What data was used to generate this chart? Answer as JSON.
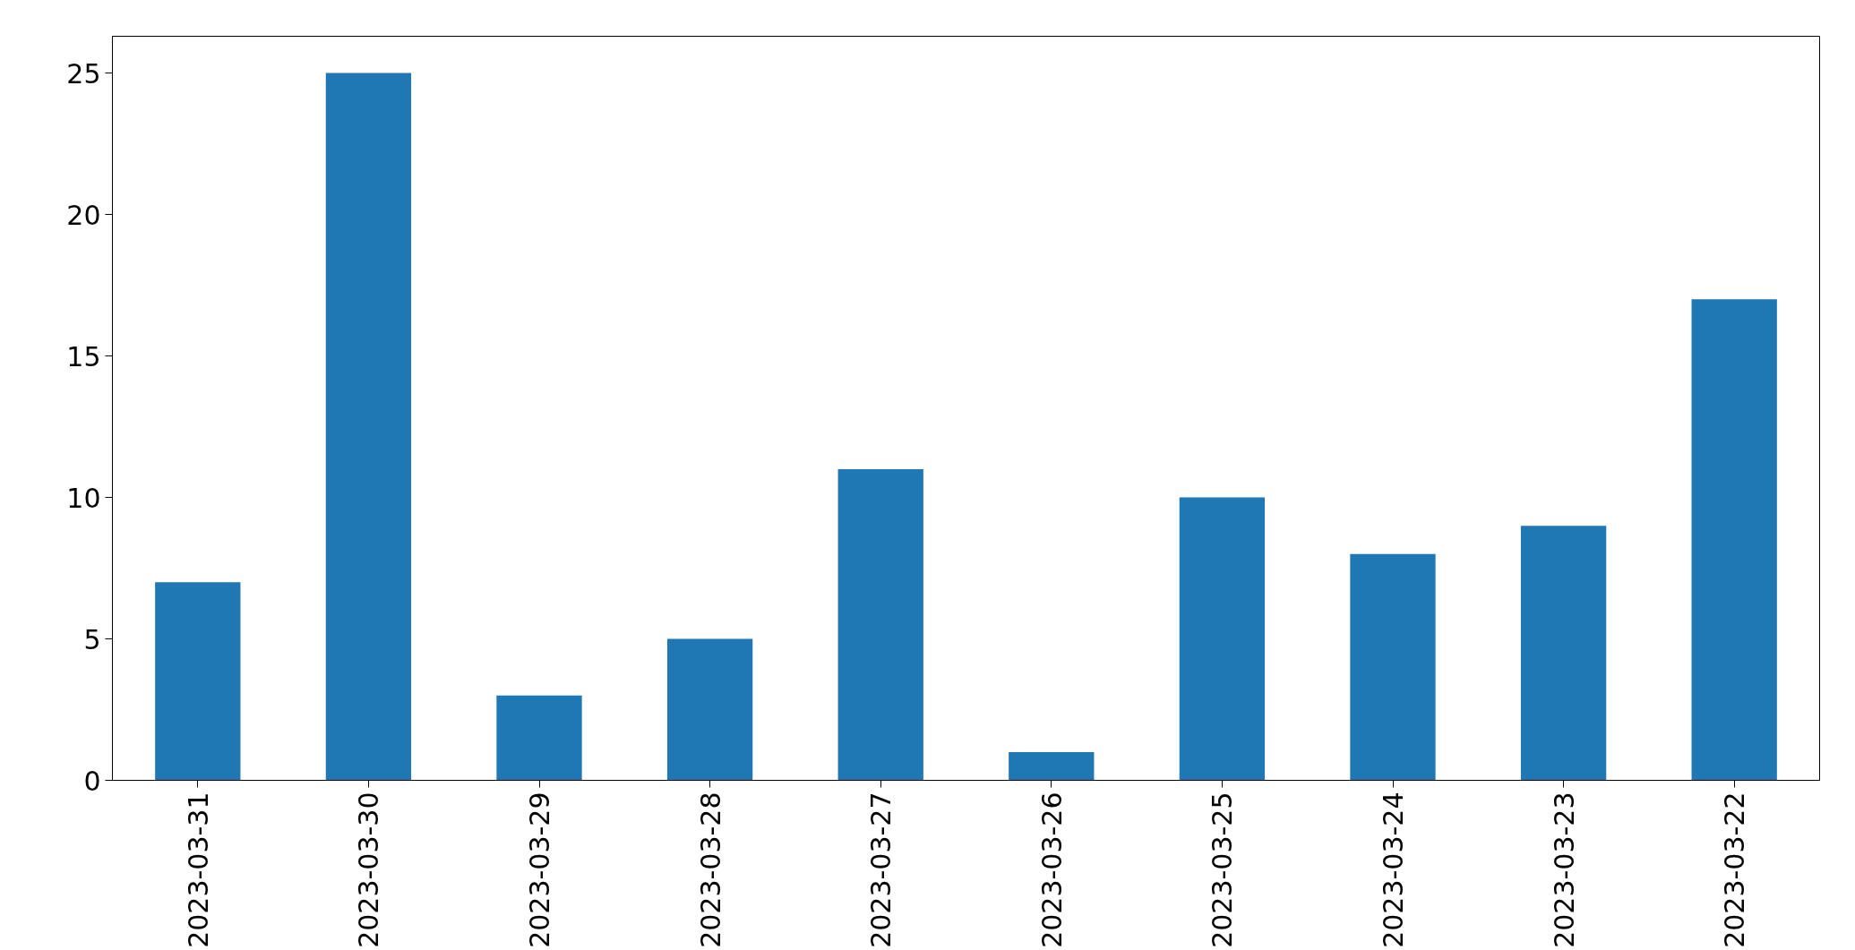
{
  "chart_data": {
    "type": "bar",
    "categories": [
      "2023-03-31",
      "2023-03-30",
      "2023-03-29",
      "2023-03-28",
      "2023-03-27",
      "2023-03-26",
      "2023-03-25",
      "2023-03-24",
      "2023-03-23",
      "2023-03-22"
    ],
    "values": [
      7,
      25,
      3,
      5,
      11,
      1,
      10,
      8,
      9,
      17
    ],
    "color": "#1f77b4",
    "ylim": [
      0,
      26.3
    ],
    "yticks": [
      0,
      5,
      10,
      15,
      20,
      25
    ],
    "grid": false
  }
}
